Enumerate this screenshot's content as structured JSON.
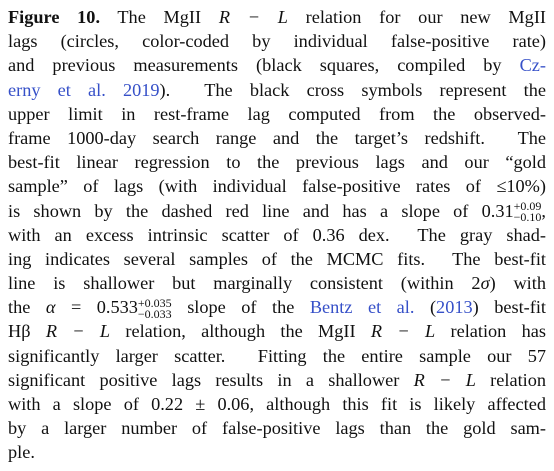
{
  "caption": {
    "lines": [
      [
        {
          "text": "Figure 10.",
          "style": "bold"
        },
        " The MgII ",
        {
          "text": "R − L",
          "style": "italic"
        },
        " relation for our new MgII"
      ],
      [
        "lags (circles, color-coded by individual false-positive rate)"
      ],
      [
        "and previous measurements (black squares, compiled by ",
        {
          "text": "Cz-",
          "style": "link"
        }
      ],
      [
        {
          "text": "erny et al. 2019",
          "style": "link"
        },
        ").  The black cross symbols represent the"
      ],
      [
        "upper limit in rest-frame lag computed from the observed-"
      ],
      [
        "frame 1000-day search range and the target’s redshift.  The"
      ],
      [
        "best-fit linear regression to the previous lags and our “gold"
      ],
      [
        "sample” of lags (with individual false-positive rates of ≤10%)"
      ],
      [
        "is shown by the dashed red line and has a slope of 0.31",
        {
          "sup": "+0.09",
          "sub": "−0.10"
        },
        ","
      ],
      [
        "with an excess intrinsic scatter of 0.36 dex.  The gray shad-"
      ],
      [
        "ing indicates several samples of the MCMC fits.  The best-fit"
      ],
      [
        "line is shallower but marginally consistent (within 2",
        {
          "text": "σ",
          "style": "italic"
        },
        ") with"
      ],
      [
        "the ",
        {
          "text": "α",
          "style": "italic"
        },
        " = 0.533",
        {
          "sup": "+0.035",
          "sub": "−0.033"
        },
        " slope of the ",
        {
          "text": "Bentz et al.",
          "style": "link"
        },
        " (",
        {
          "text": "2013",
          "style": "link"
        },
        ") best-fit"
      ],
      [
        "Hβ ",
        {
          "text": "R − L",
          "style": "italic"
        },
        " relation, although the MgII ",
        {
          "text": "R − L",
          "style": "italic"
        },
        " relation has"
      ],
      [
        "significantly larger scatter.  Fitting the entire sample our 57"
      ],
      [
        "significant positive lags results in a shallower ",
        {
          "text": "R − L",
          "style": "italic"
        },
        " relation"
      ],
      [
        "with a slope of 0.22 ± 0.06, although this fit is likely affected"
      ],
      [
        "by a larger number of false-positive lags than the gold sam-"
      ],
      [
        "ple."
      ]
    ]
  }
}
